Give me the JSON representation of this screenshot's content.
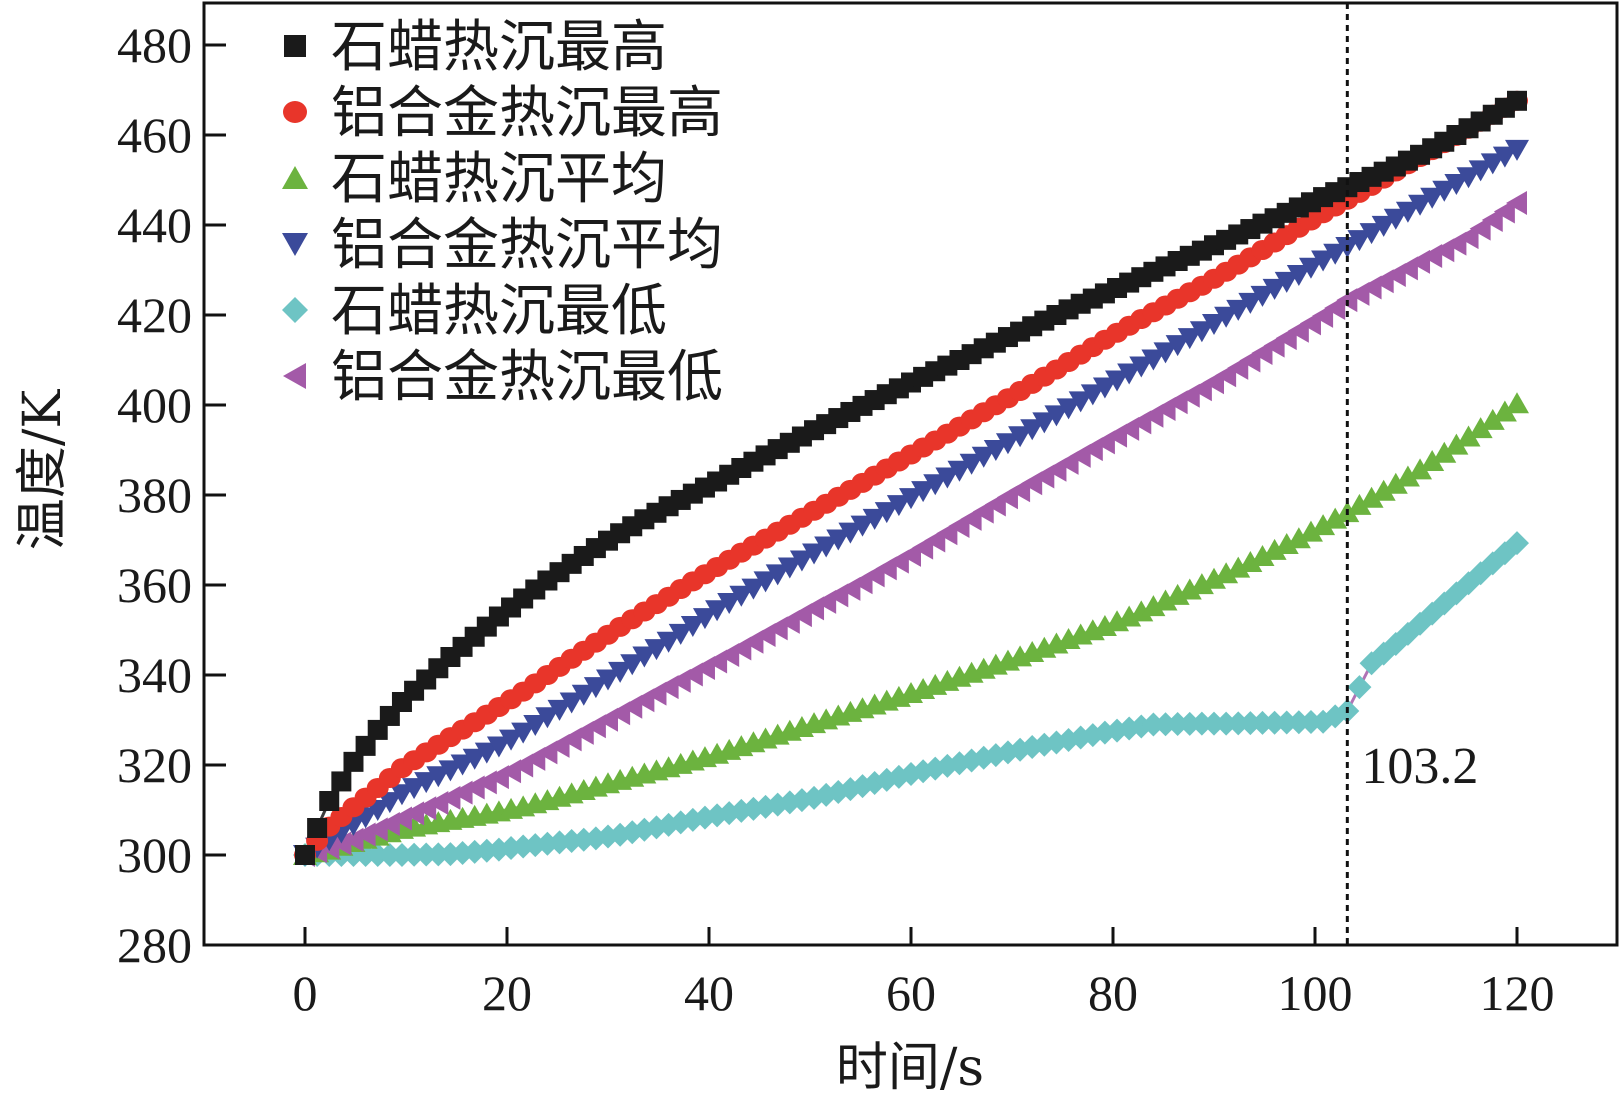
{
  "chart_data": {
    "type": "line",
    "title": "",
    "xlabel": "时间/s",
    "ylabel": "温度/K",
    "xlim": [
      -10,
      130
    ],
    "ylim": [
      280,
      490
    ],
    "xticks": [
      0,
      20,
      40,
      60,
      80,
      100,
      120
    ],
    "yticks": [
      280,
      300,
      320,
      340,
      360,
      380,
      400,
      420,
      440,
      460,
      480
    ],
    "grid": false,
    "legend_position": "top-left",
    "annotations": [
      {
        "type": "vline",
        "x": 103.2,
        "style": "dotted",
        "label": "103.2"
      }
    ],
    "x": [
      0,
      2.4,
      4.8,
      7.2,
      9.6,
      12,
      14.4,
      16.8,
      19.2,
      21.6,
      24,
      26.4,
      28.8,
      31.2,
      33.6,
      36,
      38.4,
      40.8,
      43.2,
      45.6,
      48,
      50.4,
      52.8,
      55.2,
      57.6,
      60,
      62.4,
      64.8,
      67.2,
      69.6,
      72,
      74.4,
      76.8,
      79.2,
      81.6,
      84,
      86.4,
      88.8,
      91.2,
      93.6,
      96,
      98.4,
      100.8,
      103.2,
      105.6,
      108,
      110.4,
      112.8,
      115.2,
      117.6,
      120
    ],
    "series": [
      {
        "name": "石蜡热沉最高",
        "marker": "square",
        "color": "#1a1a1a",
        "values": [
          300,
          312,
          320.7,
          327.8,
          334,
          339,
          344,
          348.5,
          353,
          357,
          361,
          364.7,
          368.2,
          371.5,
          374.6,
          377.5,
          380.3,
          383,
          386,
          388.8,
          391.6,
          394.4,
          397.1,
          399.8,
          402.4,
          405,
          407.5,
          410,
          412.6,
          415.1,
          417.5,
          420,
          422.5,
          424.8,
          427.2,
          429.6,
          432,
          434.3,
          436.7,
          439.1,
          441.5,
          443.9,
          446.2,
          448.4,
          450.7,
          453,
          455.6,
          458.5,
          461.5,
          464.5,
          467.6
        ]
      },
      {
        "name": "铝合金热沉最高",
        "marker": "circle",
        "color": "#e8352a",
        "values": [
          300,
          306.3,
          310.6,
          314.9,
          319.3,
          322.8,
          326.2,
          329.5,
          332.9,
          336.3,
          340,
          343.6,
          347.2,
          350.7,
          354.1,
          357.4,
          360.8,
          364,
          367.2,
          370.3,
          373.4,
          376.5,
          379.6,
          382.7,
          385.9,
          389,
          392.1,
          395.2,
          398.4,
          401.5,
          404.7,
          407.9,
          411.2,
          414.5,
          417.6,
          420.6,
          423.6,
          426.5,
          429.6,
          432.8,
          436.1,
          439.4,
          442.6,
          445.6,
          448.7,
          451.9,
          455.1,
          458.2,
          461.4,
          464.5,
          467.6
        ]
      },
      {
        "name": "石蜡热沉平均",
        "marker": "triangle-up",
        "color": "#6cb33f",
        "values": [
          300,
          301.2,
          302.9,
          304.3,
          305.8,
          306.8,
          307.8,
          308.7,
          309.7,
          310.8,
          312.2,
          313.7,
          315.2,
          316.7,
          318.1,
          319.5,
          321,
          322.5,
          324.2,
          325.9,
          327.6,
          329.3,
          331,
          332.6,
          334.3,
          336,
          337.8,
          339.6,
          341.4,
          343.2,
          345.1,
          347,
          349,
          350.9,
          353,
          355.3,
          357.8,
          360.2,
          362.6,
          365.1,
          367.8,
          370.4,
          373.3,
          376.2,
          379.4,
          382.5,
          385.7,
          389.4,
          393,
          396.7,
          400.4
        ]
      },
      {
        "name": "铝合金热沉平均",
        "marker": "triangle-down",
        "color": "#3b4a9a",
        "values": [
          300,
          303.3,
          306.7,
          310,
          313.5,
          316.2,
          318.8,
          321.4,
          324.1,
          327.2,
          330.6,
          333.9,
          337.3,
          340.7,
          344.1,
          347.4,
          350.9,
          354.4,
          357.6,
          360.8,
          363.9,
          367,
          370.1,
          373.2,
          376.2,
          379.3,
          382.4,
          385.4,
          388.5,
          391.5,
          394.6,
          397.7,
          400.8,
          403.9,
          407,
          410.1,
          413.3,
          416.4,
          419.6,
          422.7,
          425.8,
          428.9,
          432.1,
          435.1,
          438.2,
          441.4,
          444.5,
          447.6,
          450.6,
          453.7,
          456.7
        ]
      },
      {
        "name": "石蜡热沉最低",
        "marker": "diamond",
        "color": "#6ec4c4",
        "values": [
          300,
          300,
          300,
          300,
          300,
          300.1,
          300.2,
          300.7,
          301.2,
          301.9,
          302.5,
          303.1,
          303.7,
          304.5,
          305.6,
          306.7,
          307.8,
          308.8,
          309.8,
          310.7,
          311.7,
          312.7,
          314,
          315.3,
          316.7,
          318,
          319.2,
          320.4,
          321.6,
          322.8,
          324,
          325,
          326.1,
          327.2,
          328.1,
          329,
          329.1,
          329.2,
          329.2,
          329.3,
          329.4,
          329.5,
          329.6,
          332,
          342.6,
          346.9,
          351.4,
          355.9,
          360.4,
          364.8,
          369.3
        ]
      },
      {
        "name": "铝合金热沉最低",
        "marker": "triangle-left",
        "color": "#a35aa8",
        "values": [
          300,
          301.7,
          303.4,
          305.7,
          308.1,
          310.4,
          312.7,
          315,
          317.3,
          319.9,
          322.8,
          325.7,
          328.6,
          331.5,
          334.4,
          337.3,
          340.1,
          343,
          345.9,
          348.9,
          351.8,
          354.8,
          357.7,
          360.6,
          363.7,
          366.7,
          369.9,
          373.1,
          376.3,
          379.5,
          382.6,
          385.6,
          388.7,
          391.7,
          394.7,
          397.6,
          400.6,
          403.5,
          406.6,
          409.9,
          413.2,
          416.5,
          419.8,
          423.3,
          426.1,
          428.9,
          431.8,
          434.4,
          437.3,
          441.1,
          444.9
        ]
      }
    ]
  }
}
